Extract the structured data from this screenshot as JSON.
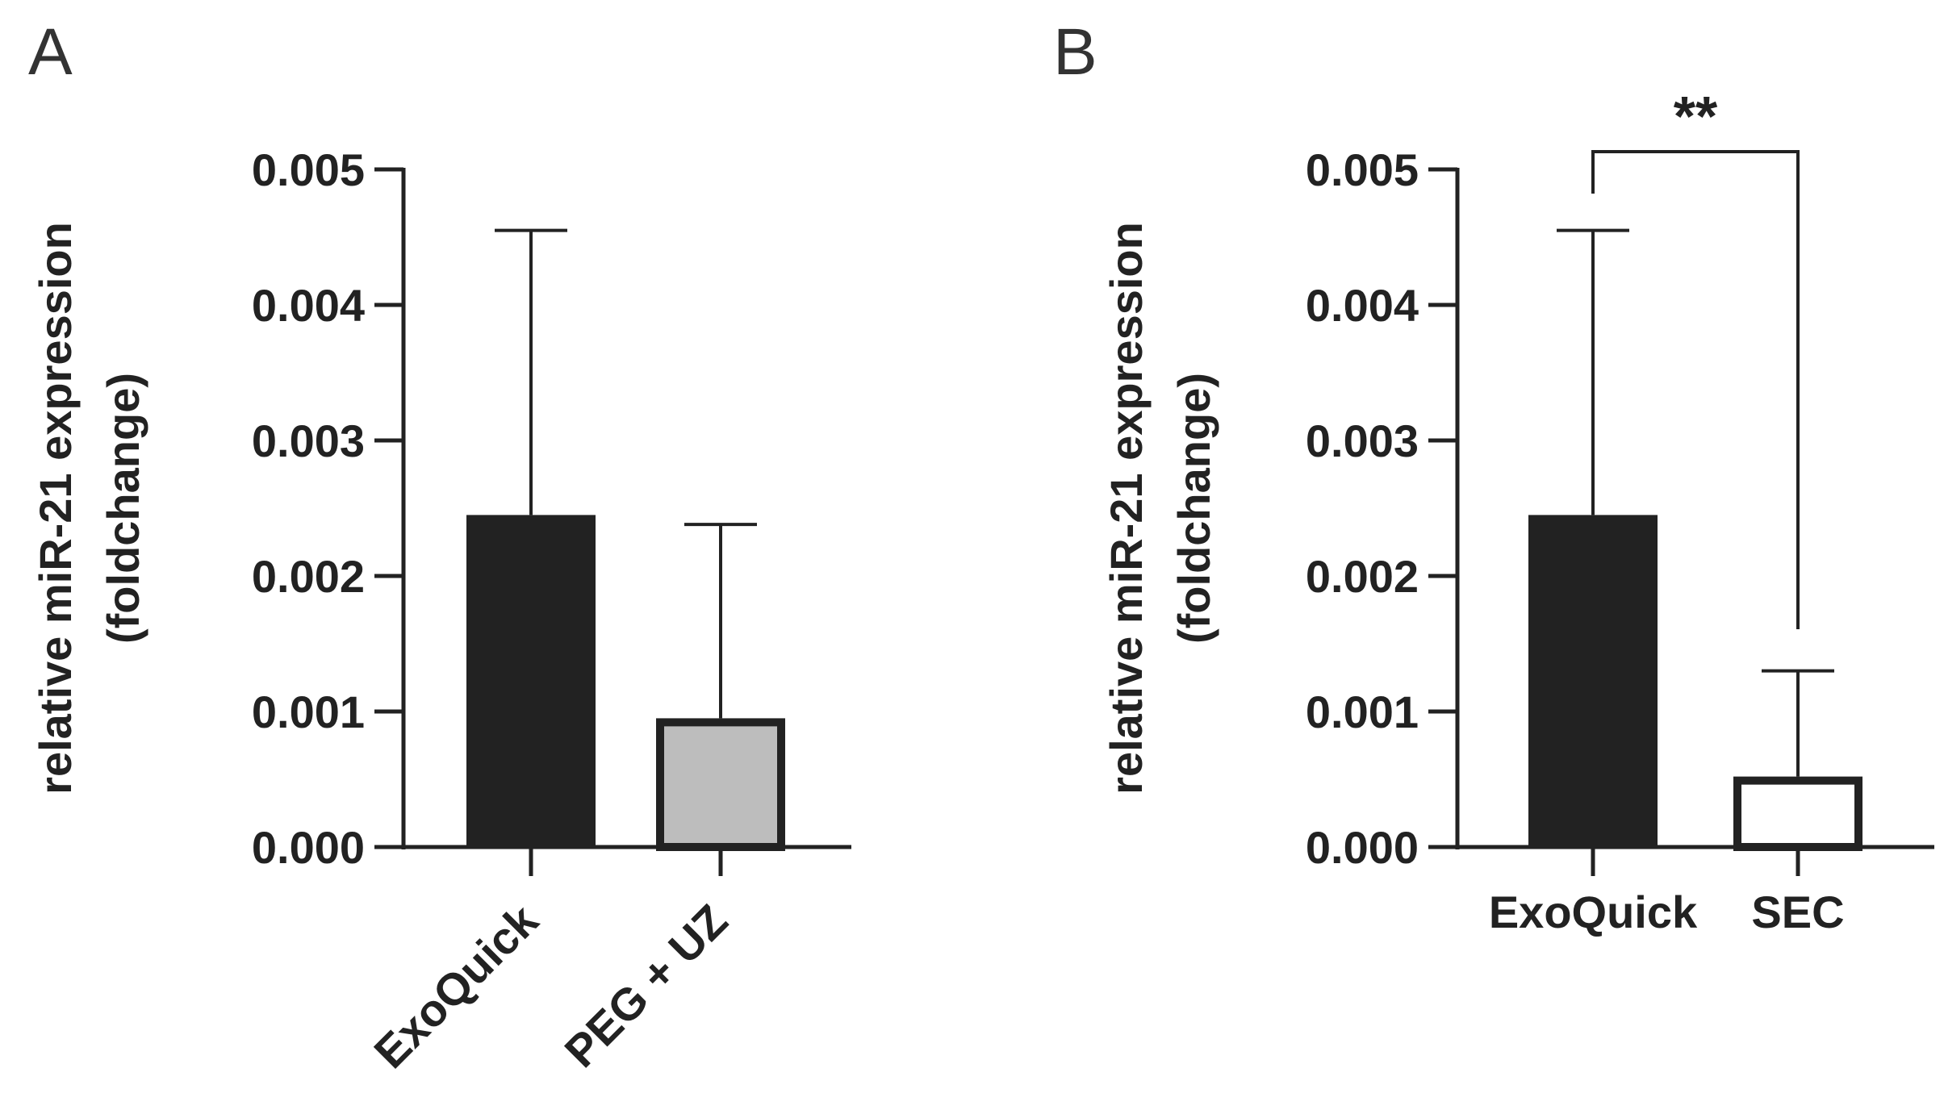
{
  "chart_data": [
    {
      "panel": "A",
      "type": "bar",
      "ylabel_line1": "relative miR-21 expression",
      "ylabel_line2": "(foldchange)",
      "ylim": [
        0,
        0.005
      ],
      "yticks": [
        "0.000",
        "0.001",
        "0.002",
        "0.003",
        "0.004",
        "0.005"
      ],
      "categories": [
        "ExoQuick",
        "PEG + UZ"
      ],
      "values": [
        0.00245,
        0.00095
      ],
      "errors": [
        0.0021,
        0.00143
      ],
      "fills": [
        "#222222",
        "#bdbdbd"
      ],
      "xlabel_rotation": "rotated"
    },
    {
      "panel": "B",
      "type": "bar",
      "ylabel_line1": "relative miR-21 expression",
      "ylabel_line2": "(foldchange)",
      "ylim": [
        0,
        0.005
      ],
      "yticks": [
        "0.000",
        "0.001",
        "0.002",
        "0.003",
        "0.004",
        "0.005"
      ],
      "categories": [
        "ExoQuick",
        "SEC"
      ],
      "values": [
        0.00245,
        0.00052
      ],
      "errors": [
        0.0021,
        0.00078
      ],
      "fills": [
        "#222222",
        "#ffffff"
      ],
      "xlabel_rotation": "horizontal",
      "significance": {
        "label": "**",
        "between": [
          0,
          1
        ]
      }
    }
  ]
}
